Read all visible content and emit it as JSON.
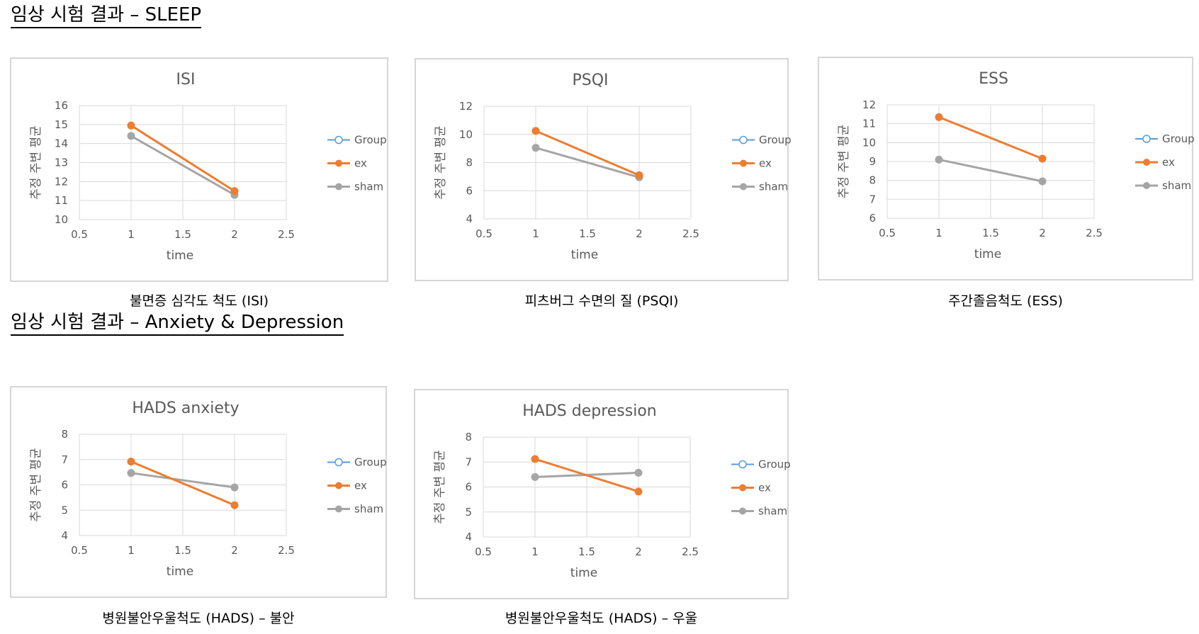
{
  "headings": {
    "sleep": "임상 시험 결과 – SLEEP",
    "anxdep": "임상 시험 결과 – Anxiety & Depression"
  },
  "colors": {
    "group": "#5B9BD5",
    "ex": "#ED7D31",
    "sham": "#A5A5A5",
    "grid": "#D9D9D9",
    "text": "#595959"
  },
  "chart_data": [
    {
      "type": "line",
      "title": "ISI",
      "caption": "불면증 심각도 척도 (ISI)",
      "xlabel": "time",
      "ylabel": "추정 주변 평균",
      "xlim": [
        0.5,
        2.5
      ],
      "xticks": [
        0.5,
        1,
        1.5,
        2,
        2.5
      ],
      "ylim": [
        10,
        16
      ],
      "yticks": [
        10,
        11,
        12,
        13,
        14,
        15,
        16
      ],
      "grid": true,
      "legend": "right",
      "legend_entries": [
        "Group",
        "ex",
        "sham"
      ],
      "series": [
        {
          "name": "ex",
          "x": [
            1,
            2
          ],
          "values": [
            14.95,
            11.5
          ]
        },
        {
          "name": "sham",
          "x": [
            1,
            2
          ],
          "values": [
            14.4,
            11.3
          ]
        }
      ]
    },
    {
      "type": "line",
      "title": "PSQI",
      "caption": "피츠버그 수면의 질 (PSQI)",
      "xlabel": "time",
      "ylabel": "추정 주변 평균",
      "xlim": [
        0.5,
        2.5
      ],
      "xticks": [
        0.5,
        1,
        1.5,
        2,
        2.5
      ],
      "ylim": [
        4,
        12
      ],
      "yticks": [
        4,
        6,
        8,
        10,
        12
      ],
      "grid": true,
      "legend": "right",
      "legend_entries": [
        "Group",
        "ex",
        "sham"
      ],
      "series": [
        {
          "name": "ex",
          "x": [
            1,
            2
          ],
          "values": [
            10.25,
            7.1
          ]
        },
        {
          "name": "sham",
          "x": [
            1,
            2
          ],
          "values": [
            9.05,
            6.95
          ]
        }
      ]
    },
    {
      "type": "line",
      "title": "ESS",
      "caption": "주간졸음척도 (ESS)",
      "xlabel": "time",
      "ylabel": "추정 주변 평균",
      "xlim": [
        0.5,
        2.5
      ],
      "xticks": [
        0.5,
        1,
        1.5,
        2,
        2.5
      ],
      "ylim": [
        6,
        12
      ],
      "yticks": [
        6,
        7,
        8,
        9,
        10,
        11,
        12
      ],
      "grid": true,
      "legend": "right",
      "legend_entries": [
        "Group",
        "ex",
        "sham"
      ],
      "series": [
        {
          "name": "ex",
          "x": [
            1,
            2
          ],
          "values": [
            11.35,
            9.15
          ]
        },
        {
          "name": "sham",
          "x": [
            1,
            2
          ],
          "values": [
            9.1,
            7.95
          ]
        }
      ]
    },
    {
      "type": "line",
      "title": "HADS anxiety",
      "caption": "병원불안우울척도 (HADS) – 불안",
      "xlabel": "time",
      "ylabel": "추정 주변 평균",
      "xlim": [
        0.5,
        2.5
      ],
      "xticks": [
        0.5,
        1,
        1.5,
        2,
        2.5
      ],
      "ylim": [
        4,
        8
      ],
      "yticks": [
        4,
        5,
        6,
        7,
        8
      ],
      "grid": true,
      "legend": "right",
      "legend_entries": [
        "Group",
        "ex",
        "sham"
      ],
      "series": [
        {
          "name": "ex",
          "x": [
            1,
            2
          ],
          "values": [
            6.92,
            5.2
          ]
        },
        {
          "name": "sham",
          "x": [
            1,
            2
          ],
          "values": [
            6.47,
            5.9
          ]
        }
      ]
    },
    {
      "type": "line",
      "title": "HADS depression",
      "caption": "병원불안우울척도 (HADS) – 우울",
      "xlabel": "time",
      "ylabel": "추정 주변 평균",
      "xlim": [
        0.5,
        2.5
      ],
      "xticks": [
        0.5,
        1,
        1.5,
        2,
        2.5
      ],
      "ylim": [
        4,
        8
      ],
      "yticks": [
        4,
        5,
        6,
        7,
        8
      ],
      "grid": true,
      "legend": "right",
      "legend_entries": [
        "Group",
        "ex",
        "sham"
      ],
      "series": [
        {
          "name": "ex",
          "x": [
            1,
            2
          ],
          "values": [
            7.12,
            5.82
          ]
        },
        {
          "name": "sham",
          "x": [
            1,
            2
          ],
          "values": [
            6.4,
            6.57
          ]
        }
      ]
    }
  ]
}
